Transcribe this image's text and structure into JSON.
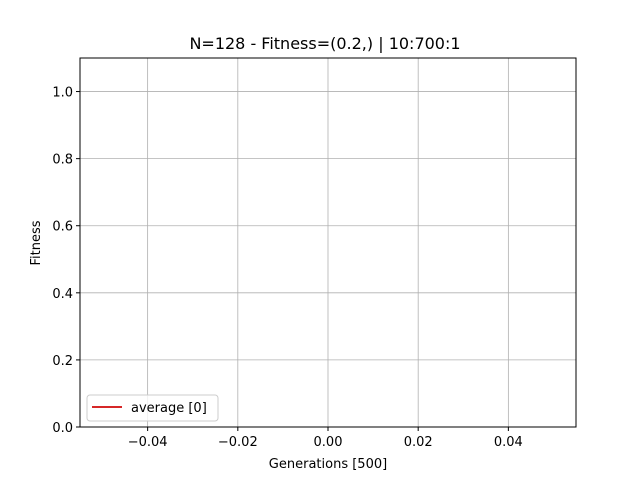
{
  "chart_data": {
    "type": "line",
    "title": "N=128  - Fitness=(0.2,) | 10:700:1",
    "xlabel": "Generations [500]",
    "ylabel": "Fitness",
    "xlim": [
      -0.055,
      0.055
    ],
    "ylim": [
      0.0,
      1.1
    ],
    "xticks": [
      -0.04,
      -0.02,
      0.0,
      0.02,
      0.04
    ],
    "xtick_labels": [
      "−0.04",
      "−0.02",
      "0.00",
      "0.02",
      "0.04"
    ],
    "yticks": [
      0.0,
      0.2,
      0.4,
      0.6,
      0.8,
      1.0
    ],
    "ytick_labels": [
      "0.0",
      "0.2",
      "0.4",
      "0.6",
      "0.8",
      "1.0"
    ],
    "grid": true,
    "legend_position": "lower-left",
    "series": [
      {
        "name": "average [0]",
        "color": "#d62728",
        "x": [],
        "y": []
      }
    ]
  }
}
